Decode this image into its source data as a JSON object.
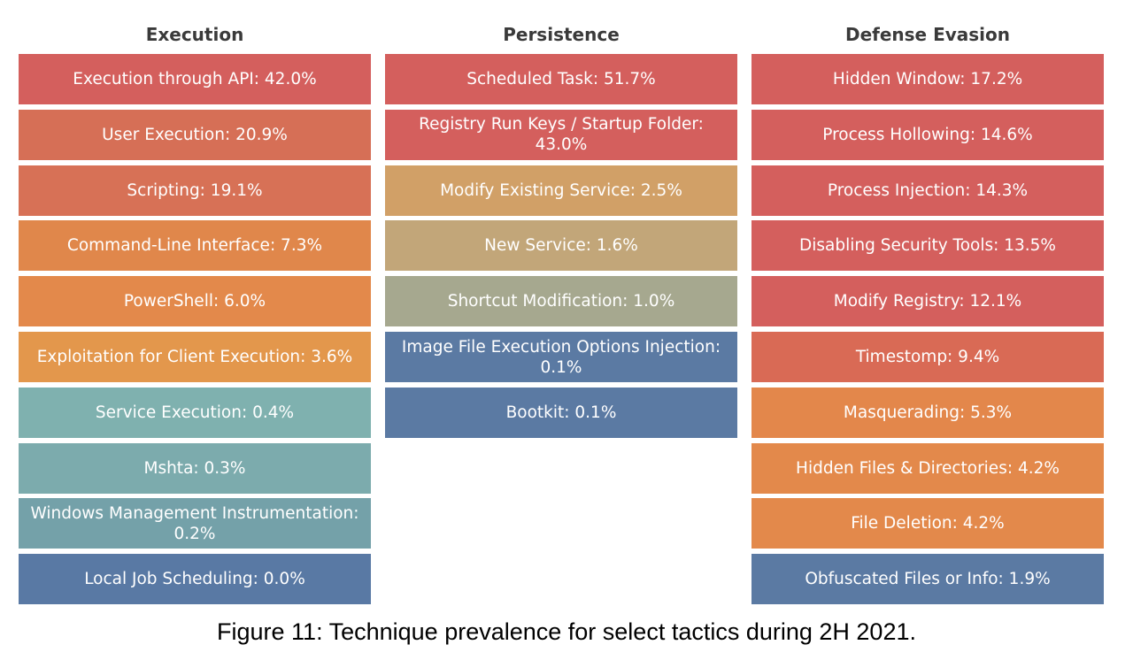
{
  "chart_data": {
    "type": "table",
    "title": "Figure 11: Technique prevalence for select tactics during 2H 2021.",
    "tactics": [
      {
        "name": "Execution",
        "techniques": [
          {
            "label": "Execution through API: 42.0%",
            "technique": "Execution through API",
            "value": 42.0,
            "color": "#d45f5d"
          },
          {
            "label": "User Execution: 20.9%",
            "technique": "User Execution",
            "value": 20.9,
            "color": "#d66f56"
          },
          {
            "label": "Scripting: 19.1%",
            "technique": "Scripting",
            "value": 19.1,
            "color": "#d77156"
          },
          {
            "label": "Command-Line Interface: 7.3%",
            "technique": "Command-Line Interface",
            "value": 7.3,
            "color": "#e0874b"
          },
          {
            "label": "PowerShell: 6.0%",
            "technique": "PowerShell",
            "value": 6.0,
            "color": "#e3894b"
          },
          {
            "label": "Exploitation for Client Execution: 3.6%",
            "technique": "Exploitation for Client Execution",
            "value": 3.6,
            "color": "#e3974c"
          },
          {
            "label": "Service Execution: 0.4%",
            "technique": "Service Execution",
            "value": 0.4,
            "color": "#7fb1af"
          },
          {
            "label": "Mshta: 0.3%",
            "technique": "Mshta",
            "value": 0.3,
            "color": "#7cabad"
          },
          {
            "label": "Windows Management Instrumentation: 0.2%",
            "technique": "Windows Management Instrumentation",
            "value": 0.2,
            "color": "#74a1a9"
          },
          {
            "label": "Local Job Scheduling: 0.0%",
            "technique": "Local Job Scheduling",
            "value": 0.0,
            "color": "#5979a4"
          }
        ]
      },
      {
        "name": "Persistence",
        "techniques": [
          {
            "label": "Scheduled Task: 51.7%",
            "technique": "Scheduled Task",
            "value": 51.7,
            "color": "#d45f5d"
          },
          {
            "label": "Registry Run Keys / Startup Folder: 43.0%",
            "technique": "Registry Run Keys / Startup Folder",
            "value": 43.0,
            "color": "#d45f5d"
          },
          {
            "label": "Modify Existing Service: 2.5%",
            "technique": "Modify Existing Service",
            "value": 2.5,
            "color": "#d1a067"
          },
          {
            "label": "New Service: 1.6%",
            "technique": "New Service",
            "value": 1.6,
            "color": "#c2a679"
          },
          {
            "label": "Shortcut Modification: 1.0%",
            "technique": "Shortcut Modification",
            "value": 1.0,
            "color": "#a6a88f"
          },
          {
            "label": "Image File Execution Options Injection: 0.1%",
            "technique": "Image File Execution Options Injection",
            "value": 0.1,
            "color": "#5b7aa3"
          },
          {
            "label": "Bootkit: 0.1%",
            "technique": "Bootkit",
            "value": 0.1,
            "color": "#5b7aa3"
          }
        ]
      },
      {
        "name": "Defense Evasion",
        "techniques": [
          {
            "label": "Hidden Window: 17.2%",
            "technique": "Hidden Window",
            "value": 17.2,
            "color": "#d45f5d"
          },
          {
            "label": "Process Hollowing: 14.6%",
            "technique": "Process Hollowing",
            "value": 14.6,
            "color": "#d45f5d"
          },
          {
            "label": "Process Injection: 14.3%",
            "technique": "Process Injection",
            "value": 14.3,
            "color": "#d45f5d"
          },
          {
            "label": "Disabling Security Tools: 13.5%",
            "technique": "Disabling Security Tools",
            "value": 13.5,
            "color": "#d45f5d"
          },
          {
            "label": "Modify Registry: 12.1%",
            "technique": "Modify Registry",
            "value": 12.1,
            "color": "#d45f5d"
          },
          {
            "label": "Timestomp: 9.4%",
            "technique": "Timestomp",
            "value": 9.4,
            "color": "#d96a55"
          },
          {
            "label": "Masquerading: 5.3%",
            "technique": "Masquerading",
            "value": 5.3,
            "color": "#e3874b"
          },
          {
            "label": "Hidden Files & Directories: 4.2%",
            "technique": "Hidden Files & Directories",
            "value": 4.2,
            "color": "#e3894b"
          },
          {
            "label": "File Deletion: 4.2%",
            "technique": "File Deletion",
            "value": 4.2,
            "color": "#e3894b"
          },
          {
            "label": "Obfuscated Files or Info: 1.9%",
            "technique": "Obfuscated Files or Info",
            "value": 1.9,
            "color": "#5b7aa3"
          }
        ]
      }
    ]
  },
  "caption": "Figure 11: Technique prevalence for select tactics during 2H 2021."
}
